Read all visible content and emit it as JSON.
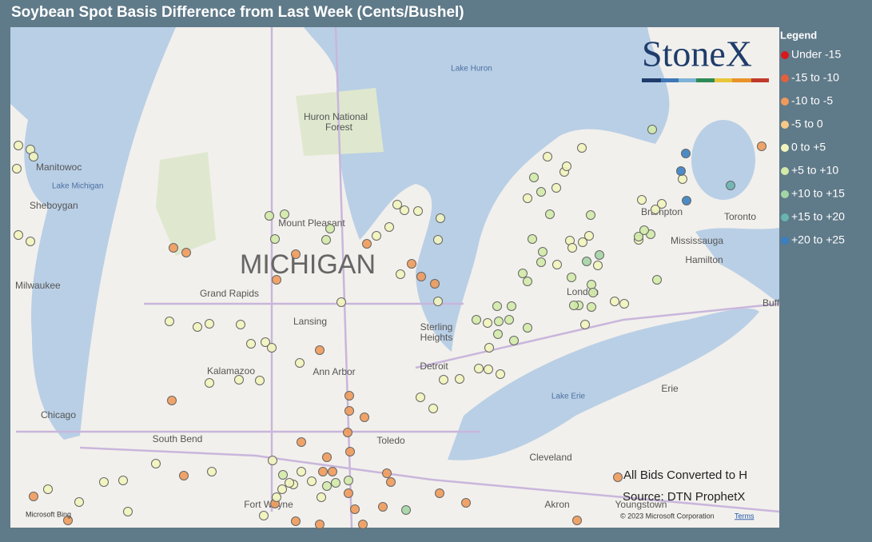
{
  "header": {
    "title": "Soybean Spot Basis Difference from Last Week (Cents/Bushel)"
  },
  "legend": {
    "title": "Legend",
    "items": [
      {
        "label": "Under -15",
        "color": "#d7191c"
      },
      {
        "label": "-15 to -10",
        "color": "#e4603b"
      },
      {
        "label": "-10 to -5",
        "color": "#f09a5a"
      },
      {
        "label": "-5 to 0",
        "color": "#f6c888"
      },
      {
        "label": "0 to +5",
        "color": "#f2f4bc"
      },
      {
        "label": "+5 to +10",
        "color": "#d2eaa8"
      },
      {
        "label": "+10 to +15",
        "color": "#a3d4a4"
      },
      {
        "label": "+15 to +20",
        "color": "#6ab4b0"
      },
      {
        "label": "+20 to +25",
        "color": "#3a7fc1"
      }
    ]
  },
  "logo": "StoneX",
  "map": {
    "labels": [
      "Lake Huron",
      "Huron National",
      "Forest",
      "Manitowoc",
      "Lake Michigan",
      "Sheboygan",
      "Milwaukee",
      "MICHIGAN",
      "Mount Pleasant",
      "Grand Rapids",
      "Lansing",
      "Sterling",
      "Heights",
      "Detroit",
      "Kalamazoo",
      "Ann Arbor",
      "Chicago",
      "South Bend",
      "Toledo",
      "Lake Erie",
      "Erie",
      "Cleveland",
      "Akron",
      "Youngstown",
      "Fort Wayne",
      "London",
      "Brampton",
      "Toronto",
      "Mississauga",
      "Hamilton",
      "Buff"
    ],
    "notes": [
      "All Bids Converted to H",
      "Source: DTN ProphetX"
    ],
    "attribution": "Microsoft Bing",
    "copyright": "© 2023 Microsoft Corporation",
    "terms": "Terms"
  }
}
